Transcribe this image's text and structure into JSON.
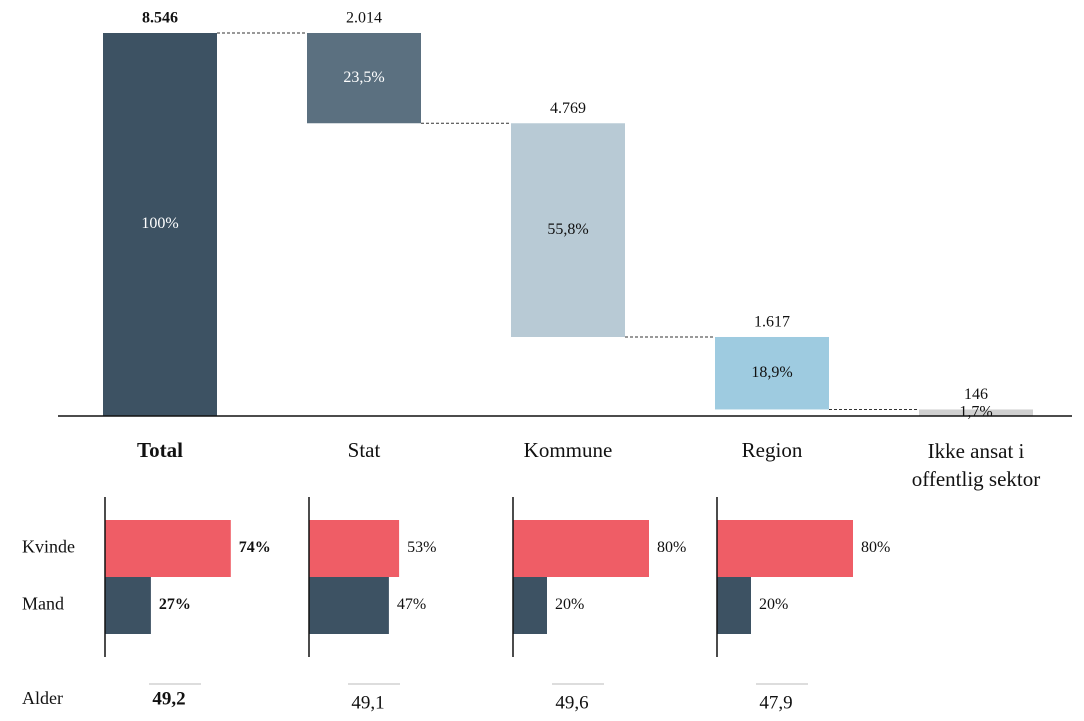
{
  "chart_data": {
    "type": "waterfall",
    "categories": [
      "Total",
      "Stat",
      "Kommune",
      "Region",
      "Ikke ansat i offentlig sektor"
    ],
    "values": [
      8546,
      2014,
      4769,
      1617,
      146
    ],
    "value_labels": [
      "8.546",
      "2.014",
      "4.769",
      "1.617",
      "146"
    ],
    "shares": [
      100,
      23.5,
      55.8,
      18.9,
      1.7
    ],
    "share_labels": [
      "100%",
      "23,5%",
      "55,8%",
      "18,9%",
      "1,7%"
    ],
    "colors": [
      "#3d5263",
      "#5b7080",
      "#b8cad5",
      "#9ecbe0",
      "#d0d0d0"
    ],
    "gender": {
      "type": "bar",
      "categories": [
        "Kvinde",
        "Mand"
      ],
      "colors": [
        "#ef5d66",
        "#3d5263"
      ],
      "groups": [
        {
          "values": [
            74,
            27
          ],
          "value_labels": [
            "74%",
            "27%"
          ]
        },
        {
          "values": [
            53,
            47
          ],
          "value_labels": [
            "53%",
            "47%"
          ]
        },
        {
          "values": [
            80,
            20
          ],
          "value_labels": [
            "80%",
            "20%"
          ]
        },
        {
          "values": [
            80,
            20
          ],
          "value_labels": [
            "80%",
            "20%"
          ]
        }
      ]
    },
    "age": {
      "label": "Alder",
      "values": [
        49.2,
        49.1,
        49.6,
        47.9
      ],
      "value_labels": [
        "49,2",
        "49,1",
        "49,6",
        "47,9"
      ]
    }
  }
}
